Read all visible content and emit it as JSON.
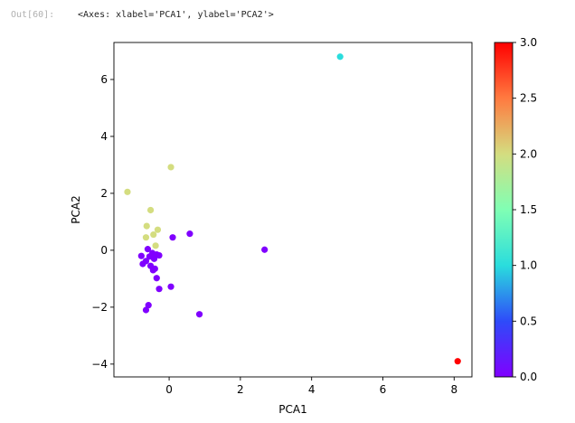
{
  "cell": {
    "prompt": "Out[60]:",
    "output_text": "<Axes: xlabel='PCA1', ylabel='PCA2'>"
  },
  "chart_data": {
    "type": "scatter",
    "xlabel": "PCA1",
    "ylabel": "PCA2",
    "xlim": [
      -1.55,
      8.5
    ],
    "ylim": [
      -4.45,
      7.3
    ],
    "xticks": [
      0,
      2,
      4,
      6,
      8
    ],
    "yticks": [
      -4,
      -2,
      0,
      2,
      4,
      6
    ],
    "colormap": "rainbow",
    "colorbar": {
      "range": [
        0.0,
        3.0
      ],
      "ticks": [
        0.0,
        0.5,
        1.0,
        1.5,
        2.0,
        2.5,
        3.0
      ],
      "tick_labels": [
        "0.0",
        "0.5",
        "1.0",
        "1.5",
        "2.0",
        "2.5",
        "3.0"
      ]
    },
    "colors": {
      "0": "#8000ff",
      "1": "#2adddd",
      "2": "#d4dd80",
      "3": "#ff0000"
    },
    "points": [
      {
        "x": 4.8,
        "y": 6.8,
        "c": 1
      },
      {
        "x": 8.1,
        "y": -3.9,
        "c": 3
      },
      {
        "x": 0.05,
        "y": 2.92,
        "c": 2
      },
      {
        "x": -1.17,
        "y": 2.05,
        "c": 2
      },
      {
        "x": -0.52,
        "y": 1.41,
        "c": 2
      },
      {
        "x": -0.63,
        "y": 0.85,
        "c": 2
      },
      {
        "x": -0.32,
        "y": 0.72,
        "c": 2
      },
      {
        "x": -0.44,
        "y": 0.55,
        "c": 2
      },
      {
        "x": -0.65,
        "y": 0.45,
        "c": 2
      },
      {
        "x": -0.38,
        "y": 0.16,
        "c": 2
      },
      {
        "x": 0.1,
        "y": 0.45,
        "c": 0
      },
      {
        "x": 0.58,
        "y": 0.58,
        "c": 0
      },
      {
        "x": 2.68,
        "y": 0.02,
        "c": 0
      },
      {
        "x": -0.6,
        "y": 0.04,
        "c": 0
      },
      {
        "x": -0.47,
        "y": -0.1,
        "c": 0
      },
      {
        "x": -0.35,
        "y": -0.15,
        "c": 0
      },
      {
        "x": -0.28,
        "y": -0.18,
        "c": 0
      },
      {
        "x": -0.55,
        "y": -0.22,
        "c": 0
      },
      {
        "x": -0.78,
        "y": -0.2,
        "c": 0
      },
      {
        "x": -0.42,
        "y": -0.3,
        "c": 0
      },
      {
        "x": -0.65,
        "y": -0.38,
        "c": 0
      },
      {
        "x": -0.74,
        "y": -0.48,
        "c": 0
      },
      {
        "x": -0.52,
        "y": -0.55,
        "c": 0
      },
      {
        "x": -0.45,
        "y": -0.7,
        "c": 0
      },
      {
        "x": -0.4,
        "y": -0.65,
        "c": 0
      },
      {
        "x": -0.35,
        "y": -0.98,
        "c": 0
      },
      {
        "x": -0.28,
        "y": -1.36,
        "c": 0
      },
      {
        "x": 0.05,
        "y": -1.28,
        "c": 0
      },
      {
        "x": -0.58,
        "y": -1.93,
        "c": 0
      },
      {
        "x": -0.65,
        "y": -2.1,
        "c": 0
      },
      {
        "x": 0.85,
        "y": -2.25,
        "c": 0
      }
    ]
  }
}
